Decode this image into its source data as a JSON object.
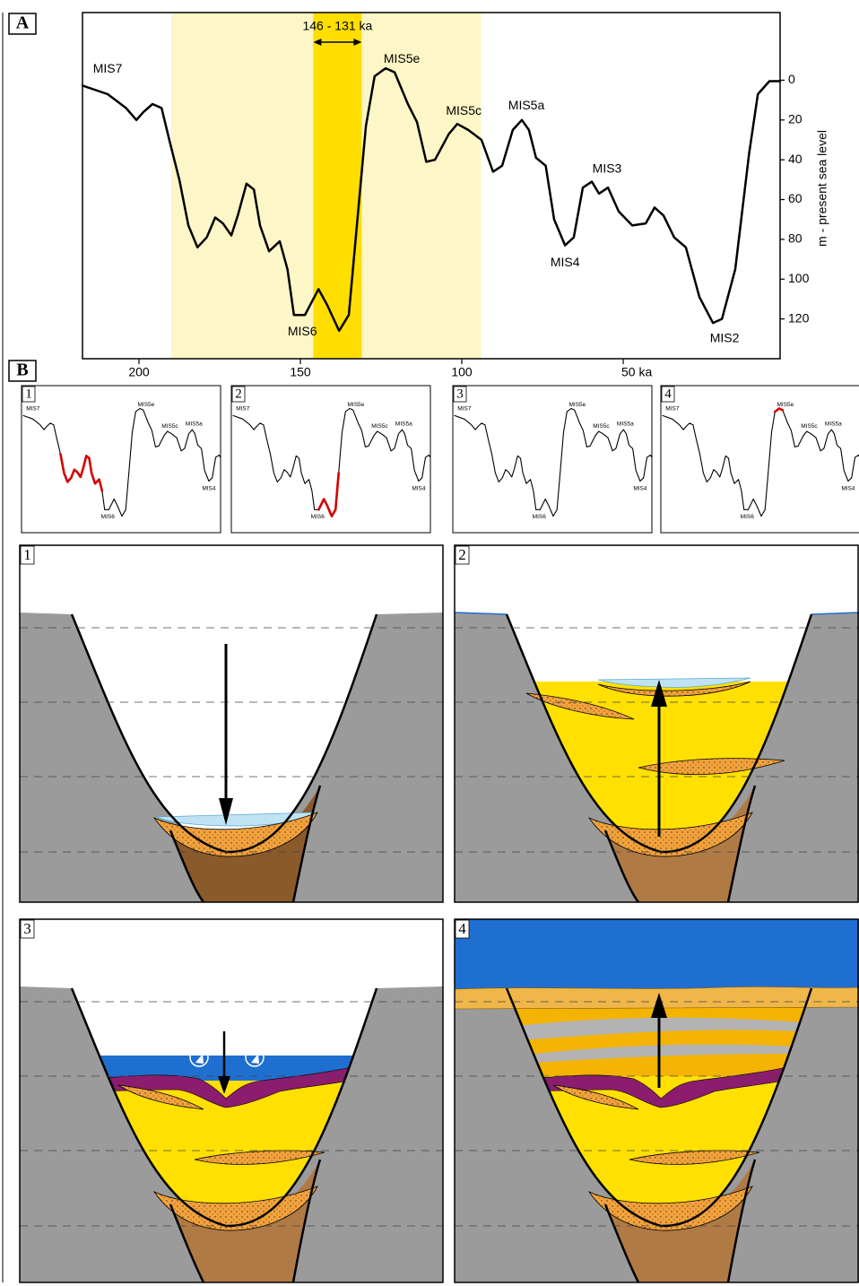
{
  "panel_labels": [
    "A",
    "B"
  ],
  "chart_data": {
    "type": "line",
    "x": [
      217.5,
      209.7,
      204,
      200.8,
      198.6,
      195.8,
      193,
      190.3,
      187.5,
      184.7,
      181.9,
      179,
      176.4,
      174,
      171.4,
      169.4,
      166.7,
      164.4,
      162.5,
      159.7,
      156.4,
      154,
      152,
      148.6,
      144.4,
      141.7,
      138,
      135,
      132.5,
      129.7,
      127,
      123.6,
      120.8,
      116.7,
      113.9,
      111,
      108.3,
      104,
      101.4,
      98,
      93.9,
      90.3,
      87.5,
      84.2,
      81.4,
      79.2,
      77,
      74,
      71.4,
      68,
      65.3,
      62.5,
      59.7,
      57.5,
      54.7,
      51.4,
      47.2,
      43,
      40.3,
      37.5,
      34.2,
      30.6,
      26.4,
      22.2,
      19.4,
      15.3,
      11,
      8.3,
      4.7,
      1.4
    ],
    "values": [
      2.7,
      7,
      14,
      20,
      16,
      12,
      14,
      32,
      50,
      73,
      84,
      79,
      69,
      72,
      78,
      68,
      52,
      55,
      73,
      86,
      81,
      95,
      118,
      118,
      105,
      113,
      126,
      118,
      73,
      23,
      -2,
      -6,
      -4,
      12,
      21,
      41,
      40,
      27,
      22,
      25,
      30,
      46,
      43,
      25,
      20,
      25,
      39,
      43,
      70,
      83,
      79,
      54,
      51,
      57,
      54,
      66,
      73,
      72,
      64,
      68,
      79,
      84,
      109,
      122,
      120,
      95,
      37,
      7,
      0.5,
      0.5
    ],
    "color": "#000000",
    "xlim": [
      217.5,
      1.4
    ],
    "ylim": [
      -34,
      140
    ],
    "xticks": [
      200,
      150,
      100,
      {
        "value": 50,
        "label": "50 ka"
      }
    ],
    "yticks": [
      0,
      20,
      40,
      60,
      80,
      100,
      120
    ],
    "y_label": "m - present sea level",
    "bands": [
      {
        "from": 190,
        "to": 94,
        "color": "#fdf6c6"
      },
      {
        "from": 146,
        "to": 131,
        "color": "#ffde00",
        "label": "146 - 131 ka"
      }
    ],
    "annotations": [
      "MIS7",
      "MIS5e",
      "MIS5c",
      "MIS5a",
      "MIS3",
      "MIS4",
      "MIS6",
      "MIS2"
    ]
  },
  "stages": [
    {
      "label": "1",
      "highlight": [
        190,
        154
      ],
      "color": "#d40000"
    },
    {
      "label": "2",
      "highlight": [
        149,
        130
      ],
      "color": "#d40000"
    },
    {
      "label": "3",
      "highlight": [
        130,
        128.5
      ],
      "color": "#d40000"
    },
    {
      "label": "4",
      "highlight": [
        127.5,
        119
      ],
      "color": "#d40000"
    }
  ]
}
